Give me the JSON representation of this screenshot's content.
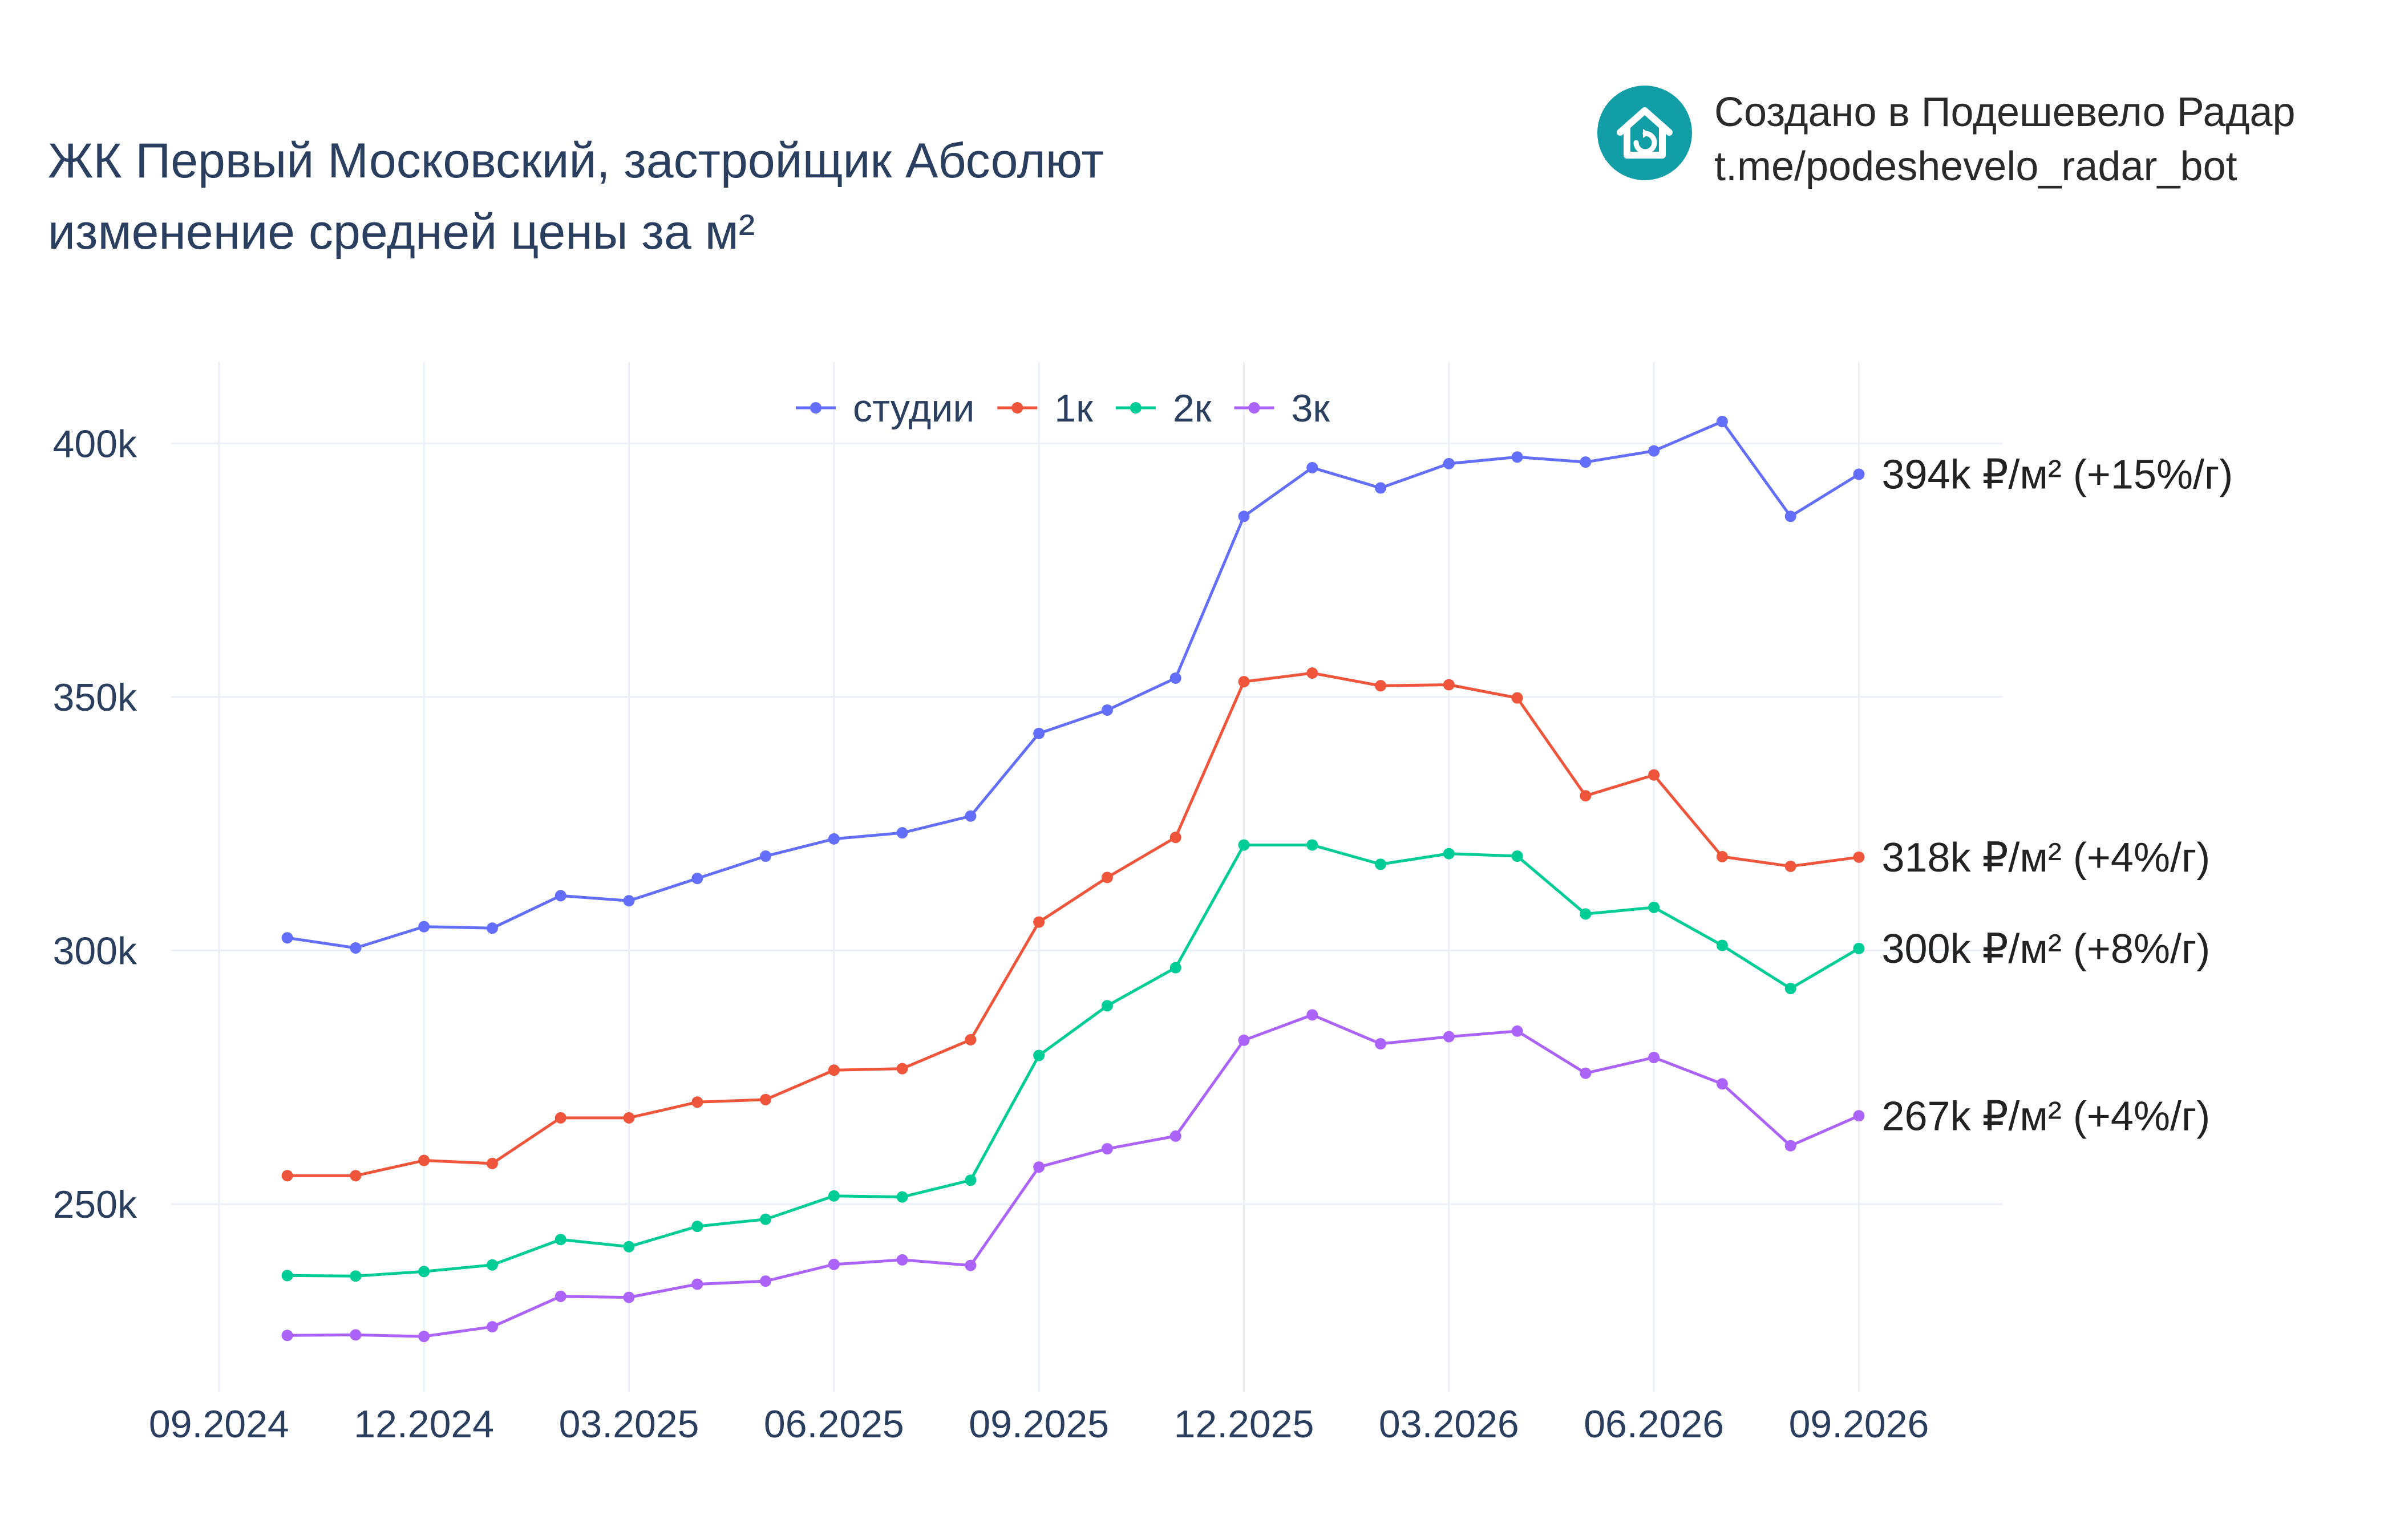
{
  "title": {
    "line1": "ЖК Первый Московский, застройщик Абсолют",
    "line2": "изменение средней цены за м²"
  },
  "brand": {
    "line1": "Создано в Подешевело Радар",
    "line2": "t.me/podeshevelo_radar_bot",
    "icon": "house-refresh-icon",
    "color": "#129ea6"
  },
  "chart_data": {
    "type": "line",
    "x": [
      "10.2024",
      "11.2024",
      "12.2024",
      "01.2025",
      "02.2025",
      "03.2025",
      "04.2025",
      "05.2025",
      "06.2025",
      "07.2025",
      "08.2025",
      "09.2025",
      "10.2025",
      "11.2025",
      "12.2025",
      "01.2026",
      "02.2026",
      "03.2026",
      "04.2026",
      "05.2026",
      "06.2026",
      "07.2026",
      "08.2026",
      "09.2026"
    ],
    "x_ticks": [
      "09.2024",
      "12.2024",
      "03.2025",
      "06.2025",
      "09.2025",
      "12.2025",
      "03.2026",
      "06.2026",
      "09.2026"
    ],
    "y_ticks": [
      "250k",
      "300k",
      "350k",
      "400k"
    ],
    "y_tick_values": [
      250000,
      300000,
      350000,
      400000
    ],
    "ylim": [
      213000,
      416000
    ],
    "xlabel": "",
    "ylabel": "",
    "grid": true,
    "legend_position": "top-center",
    "series": [
      {
        "name": "студии",
        "color": "#636efa",
        "end_label": "394k ₽/м² (+15%/г)",
        "values": [
          302500,
          300500,
          304700,
          304400,
          310800,
          309800,
          314200,
          318600,
          322000,
          323200,
          326500,
          342800,
          347400,
          353700,
          385600,
          395200,
          391200,
          396000,
          397300,
          396300,
          398500,
          404300,
          385600,
          393900
        ]
      },
      {
        "name": "1к",
        "color": "#ef553b",
        "end_label": "318k ₽/м² (+4%/г)",
        "values": [
          255600,
          255600,
          258600,
          258000,
          267000,
          267000,
          270100,
          270600,
          276400,
          276700,
          282400,
          305600,
          314400,
          322300,
          353000,
          354700,
          352200,
          352400,
          349800,
          330500,
          334600,
          318500,
          316600,
          318400
        ]
      },
      {
        "name": "2к",
        "color": "#00cc96",
        "end_label": "300k ₽/м² (+8%/г)",
        "values": [
          235900,
          235800,
          236700,
          238000,
          243000,
          241600,
          245600,
          247000,
          251600,
          251400,
          254700,
          279300,
          289100,
          296600,
          320800,
          320800,
          317000,
          319100,
          318600,
          307200,
          308500,
          301000,
          292500,
          300400
        ]
      },
      {
        "name": "3к",
        "color": "#ab63fa",
        "end_label": "267k ₽/м² (+4%/г)",
        "values": [
          224100,
          224200,
          223900,
          225800,
          231800,
          231600,
          234200,
          234800,
          238100,
          239000,
          237900,
          257300,
          260900,
          263400,
          282300,
          287300,
          281600,
          283000,
          284100,
          275800,
          278900,
          273700,
          261500,
          267400
        ]
      }
    ]
  }
}
